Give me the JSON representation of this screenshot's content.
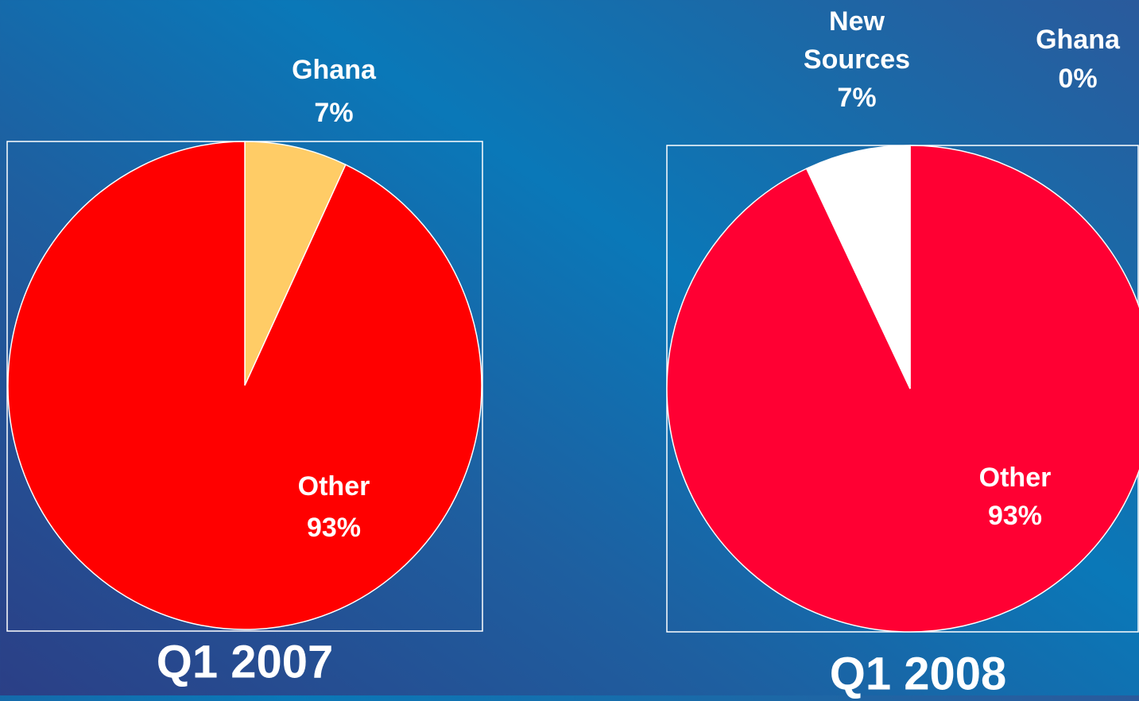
{
  "chart_data": [
    {
      "type": "pie",
      "title": "Q1 2007",
      "categories": [
        "Ghana",
        "Other"
      ],
      "values": [
        7,
        93
      ],
      "value_labels": [
        "7%",
        "93%"
      ],
      "colors": [
        "#ffcc66",
        "#ff0000"
      ]
    },
    {
      "type": "pie",
      "title": "Q1 2008",
      "categories": [
        "Ghana",
        "Other",
        "New Sources"
      ],
      "values": [
        0,
        93,
        7
      ],
      "value_labels": [
        "0%",
        "93%",
        "7%"
      ],
      "colors": [
        "#ffcc66",
        "#ff0033",
        "#ffffff"
      ]
    }
  ]
}
